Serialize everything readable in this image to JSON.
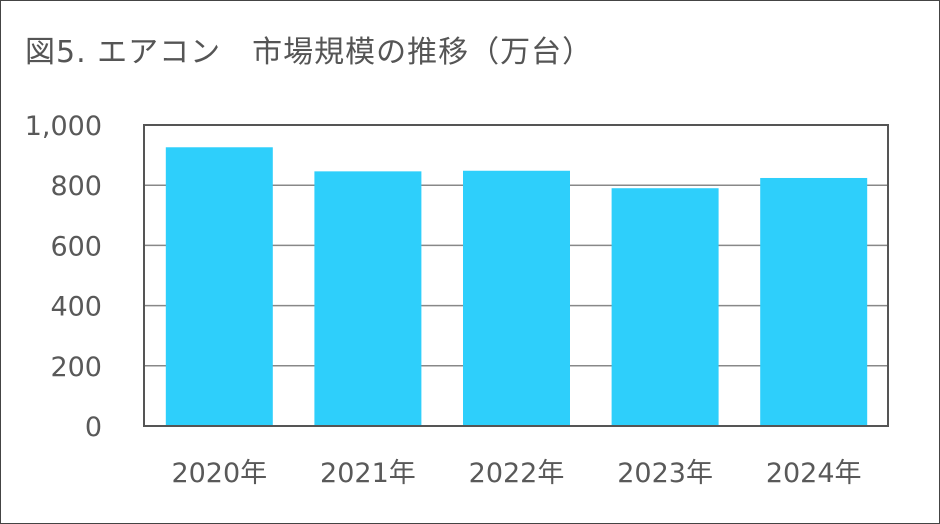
{
  "chart_data": {
    "type": "bar",
    "title": "図5. エアコン　市場規模の推移（万台）",
    "categories": [
      "2020年",
      "2021年",
      "2022年",
      "2023年",
      "2024年"
    ],
    "series": [
      {
        "values": [
          926,
          846,
          848,
          790,
          824
        ]
      }
    ],
    "xlabel": "",
    "ylabel": "",
    "ylim": [
      0,
      1000
    ],
    "yticks": [
      0,
      200,
      400,
      600,
      800,
      1000
    ],
    "ytick_labels": [
      "0",
      "200",
      "400",
      "600",
      "800",
      "1,000"
    ],
    "grid": true,
    "legend": "none",
    "colors": {
      "bar": "#2ecffb",
      "grid": "#888888",
      "axis": "#555555",
      "text": "#595959"
    }
  }
}
